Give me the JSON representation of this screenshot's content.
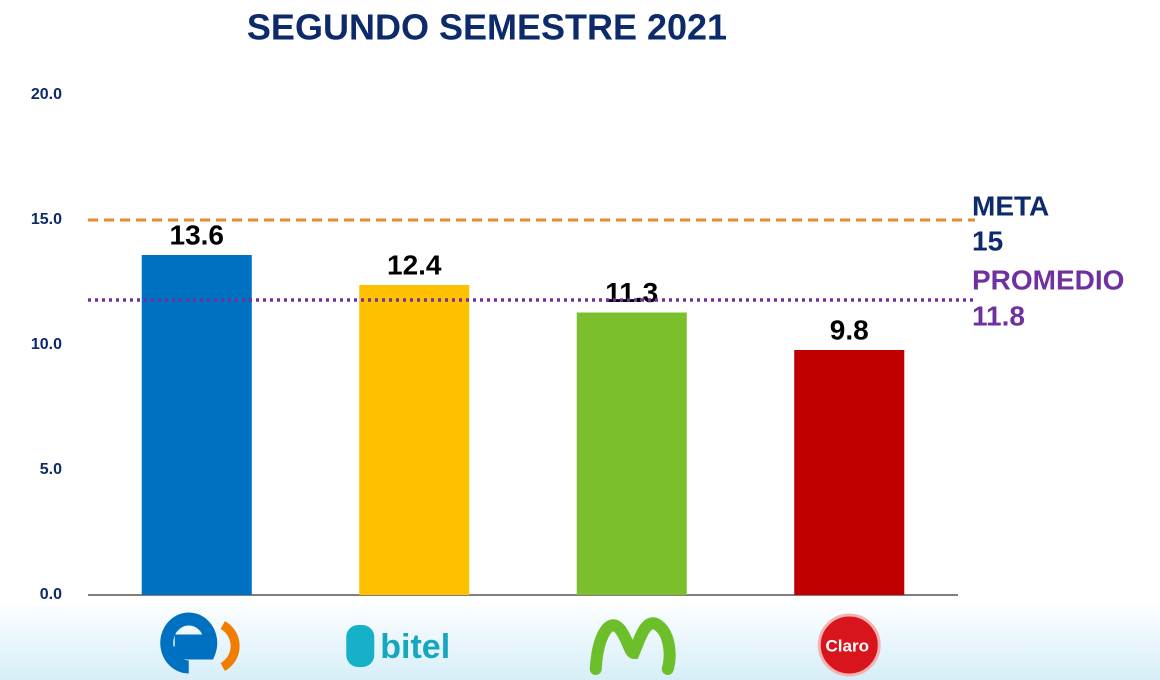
{
  "chart_data": {
    "type": "bar",
    "title": "SEGUNDO SEMESTRE 2021",
    "categories": [
      null,
      "bitel",
      null,
      "Claro"
    ],
    "values": [
      13.6,
      12.4,
      11.3,
      9.8
    ],
    "colors": [
      "#0070c0",
      "#ffc000",
      "#7cbf2d",
      "#c00000"
    ],
    "ylim": [
      0,
      20
    ],
    "yticks": [
      {
        "value": 0,
        "label": "0.0"
      },
      {
        "value": 5,
        "label": "5.0"
      },
      {
        "value": 10,
        "label": "10.0"
      },
      {
        "value": 15,
        "label": "15.0"
      },
      {
        "value": 20,
        "label": "20.0"
      }
    ],
    "grid": false,
    "reference_lines": [
      {
        "name": "META",
        "value": 15,
        "color": "#e8892f",
        "label_color": "#0d2a6b",
        "style": "dashed"
      },
      {
        "name": "PROMEDIO",
        "value": 11.8,
        "color": "#7030a0",
        "label_color": "#7030a0",
        "style": "dotted"
      }
    ]
  }
}
